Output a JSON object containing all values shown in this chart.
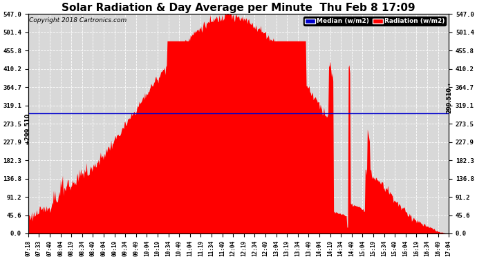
{
  "title": "Solar Radiation & Day Average per Minute  Thu Feb 8 17:09",
  "copyright": "Copyright 2018 Cartronics.com",
  "median_value": 299.51,
  "ymax": 547.0,
  "ymin": 0.0,
  "yticks": [
    0.0,
    45.6,
    91.2,
    136.8,
    182.3,
    227.9,
    273.5,
    319.1,
    364.7,
    410.2,
    455.8,
    501.4,
    547.0
  ],
  "background_color": "#ffffff",
  "plot_bg_color": "#d8d8d8",
  "grid_color": "#ffffff",
  "fill_color": "#ff0000",
  "median_line_color": "#0000cd",
  "title_fontsize": 11,
  "copyright_fontsize": 7,
  "legend_labels": [
    "Median (w/m2)",
    "Radiation (w/m2)"
  ],
  "legend_colors_bg": [
    "#0000cd",
    "#ff0000"
  ],
  "xtick_labels": [
    "07:18",
    "07:33",
    "07:49",
    "08:04",
    "08:19",
    "08:34",
    "08:49",
    "09:04",
    "09:19",
    "09:34",
    "09:49",
    "10:04",
    "10:19",
    "10:34",
    "10:49",
    "11:04",
    "11:19",
    "11:34",
    "11:49",
    "12:04",
    "12:19",
    "12:34",
    "12:49",
    "13:04",
    "13:19",
    "13:34",
    "13:49",
    "14:04",
    "14:19",
    "14:34",
    "14:49",
    "15:04",
    "15:19",
    "15:34",
    "15:49",
    "16:04",
    "16:19",
    "16:34",
    "16:49",
    "17:04"
  ]
}
